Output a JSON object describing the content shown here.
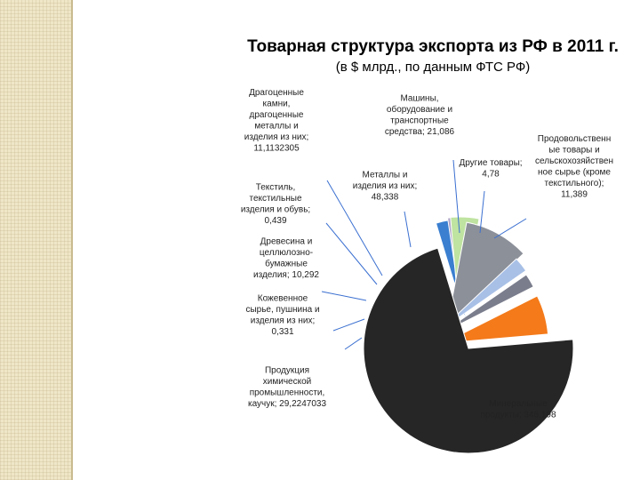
{
  "colors": {
    "sidebar": "#efe6c8",
    "mineral": "#262626",
    "chemical": "#f47a1a",
    "leather": "#f4f4f4",
    "wood": "#7a7d8c",
    "textile": "#b5ac8a",
    "gems": "#a8c0e6",
    "metals": "#8c9099",
    "machinery": "#bfe3a0",
    "other": "#b0a6c8",
    "food": "#3a7fd0",
    "leader": "#3a6fd0"
  },
  "chart_data": {
    "type": "pie",
    "title": "Товарная структура экспорта из РФ в 2011 г.",
    "subtitle": "(в $ млрд., по данным ФТС РФ)",
    "slices": [
      {
        "key": "mineral",
        "value": 346.198,
        "label_lines": [
          "Минеральные",
          "продукты; 346,198"
        ]
      },
      {
        "key": "chemical",
        "value": 29.2247033,
        "label_lines": [
          "Продукция",
          "химической",
          "промышленности,",
          "каучук; 29,2247033"
        ]
      },
      {
        "key": "leather",
        "value": 0.331,
        "label_lines": [
          "Кожевенное",
          "сырье, пушнина и",
          "изделия из них;",
          "0,331"
        ]
      },
      {
        "key": "wood",
        "value": 10.292,
        "label_lines": [
          "Древесина и",
          "целлюлозно-",
          "бумажные",
          "изделия; 10,292"
        ]
      },
      {
        "key": "textile",
        "value": 0.439,
        "label_lines": [
          "Текстиль,",
          "текстильные",
          "изделия и обувь;",
          "0,439"
        ]
      },
      {
        "key": "gems",
        "value": 11.1132305,
        "label_lines": [
          "Драгоценные",
          "камни,",
          "драгоценные",
          "металлы и",
          "изделия из них;",
          "11,1132305"
        ]
      },
      {
        "key": "metals",
        "value": 48.338,
        "label_lines": [
          "Металлы и",
          "изделия из них;",
          "48,338"
        ]
      },
      {
        "key": "machinery",
        "value": 21.086,
        "label_lines": [
          "Машины,",
          "оборудование и",
          "транспортные",
          "средства; 21,086"
        ]
      },
      {
        "key": "other",
        "value": 4.78,
        "label_lines": [
          "Другие товары;",
          "4,78"
        ]
      },
      {
        "key": "food",
        "value": 11.389,
        "label_lines": [
          "Продовольственн",
          "ые товары и",
          "сельскохозяйствен",
          "ное сырье (кроме",
          "текстильного);",
          "11,389"
        ]
      }
    ]
  }
}
